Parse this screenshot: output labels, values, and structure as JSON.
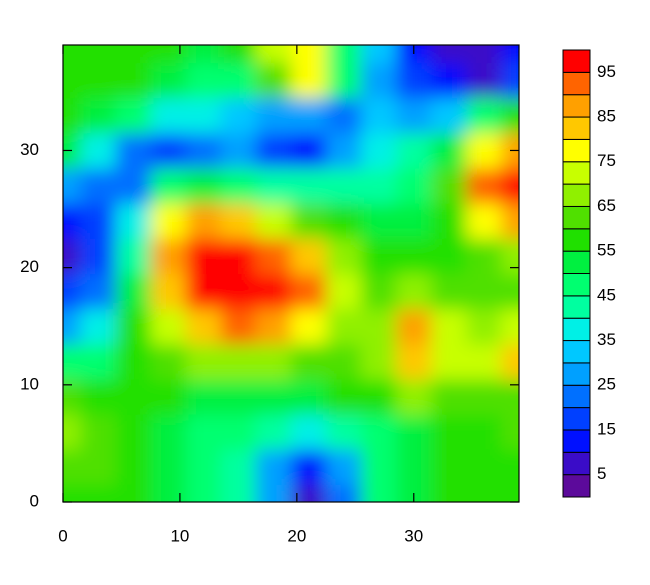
{
  "chart_data": {
    "type": "contour",
    "x": [
      0,
      3,
      6,
      9,
      12,
      15,
      18,
      21,
      24,
      27,
      30,
      33,
      36,
      39
    ],
    "y": [
      0,
      3,
      6,
      9,
      12,
      15,
      18,
      21,
      24,
      27,
      30,
      33,
      36,
      39
    ],
    "z": [
      [
        58,
        57,
        55,
        52,
        48,
        42,
        25,
        8,
        20,
        45,
        52,
        55,
        57,
        57
      ],
      [
        62,
        60,
        56,
        52,
        48,
        42,
        28,
        12,
        25,
        45,
        52,
        55,
        57,
        58
      ],
      [
        68,
        62,
        56,
        52,
        47,
        45,
        40,
        35,
        40,
        48,
        53,
        56,
        58,
        60
      ],
      [
        60,
        58,
        56,
        55,
        52,
        50,
        50,
        52,
        55,
        58,
        68,
        62,
        60,
        62
      ],
      [
        45,
        48,
        58,
        62,
        65,
        68,
        68,
        62,
        60,
        65,
        80,
        70,
        72,
        82
      ],
      [
        28,
        35,
        55,
        72,
        82,
        90,
        88,
        78,
        65,
        68,
        85,
        72,
        68,
        70
      ],
      [
        15,
        20,
        50,
        80,
        95,
        98,
        98,
        92,
        70,
        62,
        68,
        62,
        60,
        62
      ],
      [
        5,
        15,
        40,
        85,
        98,
        98,
        92,
        80,
        65,
        58,
        58,
        58,
        60,
        65
      ],
      [
        10,
        18,
        35,
        75,
        88,
        82,
        72,
        62,
        55,
        50,
        52,
        58,
        78,
        85
      ],
      [
        25,
        20,
        22,
        45,
        50,
        48,
        42,
        40,
        42,
        42,
        48,
        62,
        90,
        98
      ],
      [
        50,
        35,
        22,
        15,
        22,
        25,
        15,
        12,
        25,
        35,
        40,
        50,
        75,
        85
      ],
      [
        55,
        50,
        45,
        38,
        35,
        32,
        28,
        25,
        22,
        32,
        28,
        30,
        45,
        55
      ],
      [
        58,
        58,
        55,
        52,
        48,
        45,
        62,
        78,
        45,
        25,
        15,
        10,
        5,
        15
      ],
      [
        58,
        58,
        57,
        55,
        52,
        55,
        72,
        75,
        45,
        30,
        12,
        8,
        5,
        12
      ]
    ],
    "levels": [
      5,
      10,
      15,
      20,
      25,
      30,
      35,
      40,
      45,
      50,
      55,
      60,
      65,
      70,
      75,
      80,
      85,
      90,
      95
    ],
    "colors": [
      "#5c0a9b",
      "#3a0cc8",
      "#0010ff",
      "#0040ff",
      "#0070ff",
      "#00a0ff",
      "#00c8ff",
      "#00f0e6",
      "#00ffa0",
      "#00ff70",
      "#00f040",
      "#20e000",
      "#50e000",
      "#90f000",
      "#c8ff00",
      "#ffff00",
      "#ffc800",
      "#ffa000",
      "#ff6400",
      "#ff0000"
    ],
    "colorbar_ticks": [
      5,
      15,
      25,
      35,
      45,
      55,
      65,
      75,
      85,
      95
    ],
    "xlim": [
      0,
      39
    ],
    "ylim": [
      0,
      39
    ],
    "xticks": [
      0,
      10,
      20,
      30
    ],
    "yticks": [
      0,
      10,
      20,
      30
    ]
  }
}
